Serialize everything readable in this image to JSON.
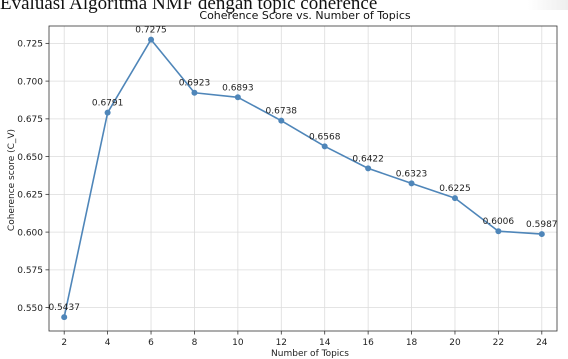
{
  "document": {
    "heading": "Evaluasi Algoritma NMF dengan topic coherence"
  },
  "chart_data": {
    "type": "line",
    "title": "Coherence Score vs. Number of Topics",
    "xlabel": "Number of Topics",
    "ylabel": "Coherence score (C_V)",
    "x": [
      2,
      4,
      6,
      8,
      10,
      12,
      14,
      16,
      18,
      20,
      22,
      24
    ],
    "series": [
      {
        "values": [
          0.5437,
          0.6791,
          0.7275,
          0.6923,
          0.6893,
          0.6738,
          0.6568,
          0.6422,
          0.6323,
          0.6225,
          0.6006,
          0.5987
        ],
        "labels": [
          "0.5437",
          "0.6791",
          "0.7275",
          "0.6923",
          "0.6893",
          "0.6738",
          "0.6568",
          "0.6422",
          "0.6323",
          "0.6225",
          "0.6006",
          "0.5987"
        ],
        "color": "#4f86b9"
      }
    ],
    "xticks": [
      "2",
      "4",
      "6",
      "8",
      "10",
      "12",
      "14",
      "16",
      "18",
      "20",
      "22",
      "24"
    ],
    "yticks": [
      "0.550",
      "0.575",
      "0.600",
      "0.625",
      "0.650",
      "0.675",
      "0.700",
      "0.725"
    ],
    "xlim": [
      1.3,
      24.7
    ],
    "ylim": [
      0.5345,
      0.7365
    ],
    "grid": true,
    "grid_color": "#dcdcdc",
    "axis_color": "#333333"
  }
}
